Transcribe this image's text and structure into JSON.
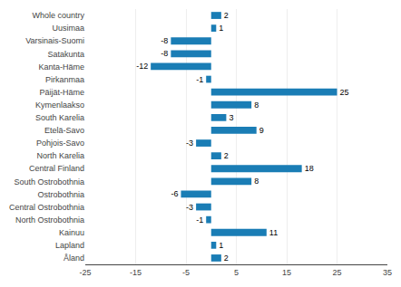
{
  "chart_data": {
    "type": "bar",
    "orientation": "horizontal",
    "categories": [
      "Whole country",
      "Uusimaa",
      "Varsinais-Suomi",
      "Satakunta",
      "Kanta-Häme",
      "Pirkanmaa",
      "Päijät-Häme",
      "Kymenlaakso",
      "South Karelia",
      "Etelä-Savo",
      "Pohjois-Savo",
      "North Karelia",
      "Central Finland",
      "South Ostrobothnia",
      "Ostrobothnia",
      "Central Ostrobothnia",
      "North Ostrobothnia",
      "Kainuu",
      "Lapland",
      "Åland"
    ],
    "values": [
      2,
      1,
      -8,
      -8,
      -12,
      -1,
      25,
      8,
      3,
      9,
      -3,
      2,
      18,
      8,
      -6,
      -3,
      -1,
      11,
      1,
      2
    ],
    "color": "#1a7db5",
    "xlim": [
      -25,
      35
    ],
    "xticks": [
      -25,
      -15,
      -5,
      5,
      15,
      25,
      35
    ],
    "grid": true,
    "data_labels": true
  }
}
